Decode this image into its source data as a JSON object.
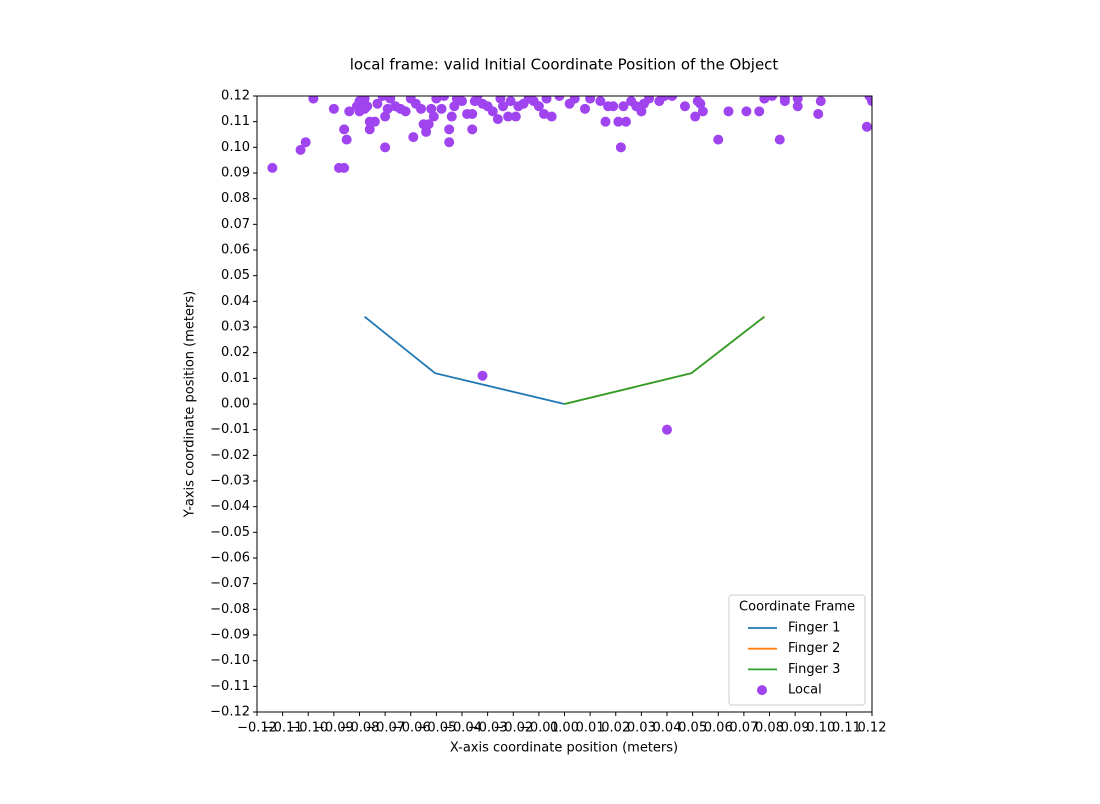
{
  "chart_data": {
    "type": "line",
    "title": "local frame: valid Initial Coordinate Position of the Object",
    "xlabel": "X-axis coordinate position (meters)",
    "ylabel": "Y-axis coordinate position (meters)",
    "xlim": [
      -0.12,
      0.12
    ],
    "ylim": [
      -0.12,
      0.12
    ],
    "xticks": [
      {
        "value": -0.12,
        "label": "−0.12"
      },
      {
        "value": -0.11,
        "label": "−0.11"
      },
      {
        "value": -0.1,
        "label": "−0.10"
      },
      {
        "value": -0.09,
        "label": "−0.09"
      },
      {
        "value": -0.08,
        "label": "−0.08"
      },
      {
        "value": -0.07,
        "label": "−0.07"
      },
      {
        "value": -0.06,
        "label": "−0.06"
      },
      {
        "value": -0.05,
        "label": "−0.05"
      },
      {
        "value": -0.04,
        "label": "−0.04"
      },
      {
        "value": -0.03,
        "label": "−0.03"
      },
      {
        "value": -0.02,
        "label": "−0.02"
      },
      {
        "value": -0.01,
        "label": "−0.01"
      },
      {
        "value": 0,
        "label": "0.00"
      },
      {
        "value": 0.01,
        "label": "0.01"
      },
      {
        "value": 0.02,
        "label": "0.02"
      },
      {
        "value": 0.03,
        "label": "0.03"
      },
      {
        "value": 0.04,
        "label": "0.04"
      },
      {
        "value": 0.05,
        "label": "0.05"
      },
      {
        "value": 0.06,
        "label": "0.06"
      },
      {
        "value": 0.07,
        "label": "0.07"
      },
      {
        "value": 0.08,
        "label": "0.08"
      },
      {
        "value": 0.09,
        "label": "0.09"
      },
      {
        "value": 0.1,
        "label": "0.10"
      },
      {
        "value": 0.11,
        "label": "0.11"
      },
      {
        "value": 0.12,
        "label": "0.12"
      }
    ],
    "yticks": [
      {
        "value": -0.12,
        "label": "−0.12"
      },
      {
        "value": -0.11,
        "label": "−0.11"
      },
      {
        "value": -0.1,
        "label": "−0.10"
      },
      {
        "value": -0.09,
        "label": "−0.09"
      },
      {
        "value": -0.08,
        "label": "−0.08"
      },
      {
        "value": -0.07,
        "label": "−0.07"
      },
      {
        "value": -0.06,
        "label": "−0.06"
      },
      {
        "value": -0.05,
        "label": "−0.05"
      },
      {
        "value": -0.04,
        "label": "−0.04"
      },
      {
        "value": -0.03,
        "label": "−0.03"
      },
      {
        "value": -0.02,
        "label": "−0.02"
      },
      {
        "value": -0.01,
        "label": "−0.01"
      },
      {
        "value": 0,
        "label": "0.00"
      },
      {
        "value": 0.01,
        "label": "0.01"
      },
      {
        "value": 0.02,
        "label": "0.02"
      },
      {
        "value": 0.03,
        "label": "0.03"
      },
      {
        "value": 0.04,
        "label": "0.04"
      },
      {
        "value": 0.05,
        "label": "0.05"
      },
      {
        "value": 0.06,
        "label": "0.06"
      },
      {
        "value": 0.07,
        "label": "0.07"
      },
      {
        "value": 0.08,
        "label": "0.08"
      },
      {
        "value": 0.09,
        "label": "0.09"
      },
      {
        "value": 0.1,
        "label": "0.10"
      },
      {
        "value": 0.11,
        "label": "0.11"
      },
      {
        "value": 0.12,
        "label": "0.12"
      }
    ],
    "grid": false,
    "legend": "lower right",
    "legend_title": "Coordinate Frame",
    "series": [
      {
        "name": "Finger 1",
        "type": "line",
        "color": "#1f77b4",
        "x": [
          -0.078,
          -0.0505,
          0
        ],
        "values": [
          0.034,
          0.012,
          0
        ]
      },
      {
        "name": "Finger 2",
        "type": "line",
        "color": "#ff7f0e",
        "x": [
          0,
          0.0495,
          0.078
        ],
        "values": [
          0,
          0.012,
          0.034
        ]
      },
      {
        "name": "Finger 3",
        "type": "line",
        "color": "#2ca02c",
        "x": [
          0,
          0.0495,
          0.078
        ],
        "values": [
          0,
          0.012,
          0.034
        ]
      },
      {
        "name": "Local",
        "type": "scatter",
        "color": "#a044f0",
        "x": [
          -0.114,
          -0.103,
          -0.101,
          -0.098,
          -0.09,
          -0.088,
          -0.086,
          -0.086,
          -0.085,
          -0.084,
          -0.081,
          -0.08,
          -0.08,
          -0.078,
          -0.078,
          -0.077,
          -0.076,
          -0.076,
          -0.074,
          -0.073,
          -0.071,
          -0.07,
          -0.07,
          -0.069,
          -0.068,
          -0.066,
          -0.064,
          -0.062,
          -0.06,
          -0.059,
          -0.058,
          -0.056,
          -0.055,
          -0.054,
          -0.053,
          -0.052,
          -0.051,
          -0.05,
          -0.048,
          -0.047,
          -0.045,
          -0.045,
          -0.044,
          -0.043,
          -0.042,
          -0.04,
          -0.038,
          -0.036,
          -0.036,
          -0.035,
          -0.034,
          -0.032,
          -0.03,
          -0.028,
          -0.026,
          -0.025,
          -0.024,
          -0.022,
          -0.021,
          -0.019,
          -0.018,
          -0.016,
          -0.014,
          -0.012,
          -0.01,
          -0.008,
          -0.007,
          -0.005,
          -0.002,
          0.002,
          0.004,
          0.008,
          0.01,
          0.014,
          0.016,
          0.017,
          0.019,
          0.021,
          0.022,
          0.023,
          0.024,
          0.026,
          0.028,
          0.03,
          0.031,
          0.033,
          0.037,
          0.039,
          0.042,
          0.047,
          0.051,
          0.052,
          0.053,
          0.054,
          0.06,
          0.064,
          0.071,
          0.076,
          0.078,
          0.081,
          0.084,
          0.086,
          0.086,
          0.091,
          0.091,
          0.099,
          0.1,
          0.118,
          0.119,
          0.12,
          -0.032,
          0.04
        ],
        "values": [
          0.092,
          0.099,
          0.102,
          0.119,
          0.115,
          0.092,
          0.092,
          0.107,
          0.103,
          0.114,
          0.116,
          0.118,
          0.114,
          0.115,
          0.119,
          0.116,
          0.11,
          0.107,
          0.11,
          0.117,
          0.12,
          0.1,
          0.112,
          0.115,
          0.119,
          0.116,
          0.115,
          0.114,
          0.119,
          0.104,
          0.117,
          0.115,
          0.109,
          0.106,
          0.109,
          0.115,
          0.112,
          0.119,
          0.115,
          0.12,
          0.102,
          0.107,
          0.112,
          0.116,
          0.119,
          0.118,
          0.113,
          0.107,
          0.113,
          0.118,
          0.12,
          0.117,
          0.116,
          0.114,
          0.111,
          0.119,
          0.116,
          0.112,
          0.118,
          0.112,
          0.116,
          0.117,
          0.119,
          0.118,
          0.116,
          0.113,
          0.119,
          0.112,
          0.12,
          0.117,
          0.119,
          0.115,
          0.119,
          0.118,
          0.11,
          0.116,
          0.116,
          0.11,
          0.1,
          0.116,
          0.11,
          0.118,
          0.116,
          0.114,
          0.117,
          0.119,
          0.118,
          0.12,
          0.12,
          0.116,
          0.112,
          0.118,
          0.117,
          0.114,
          0.103,
          0.114,
          0.114,
          0.114,
          0.119,
          0.12,
          0.103,
          0.119,
          0.118,
          0.116,
          0.119,
          0.113,
          0.118,
          0.108,
          0.12,
          0.118,
          0.011,
          -0.01
        ]
      }
    ]
  }
}
